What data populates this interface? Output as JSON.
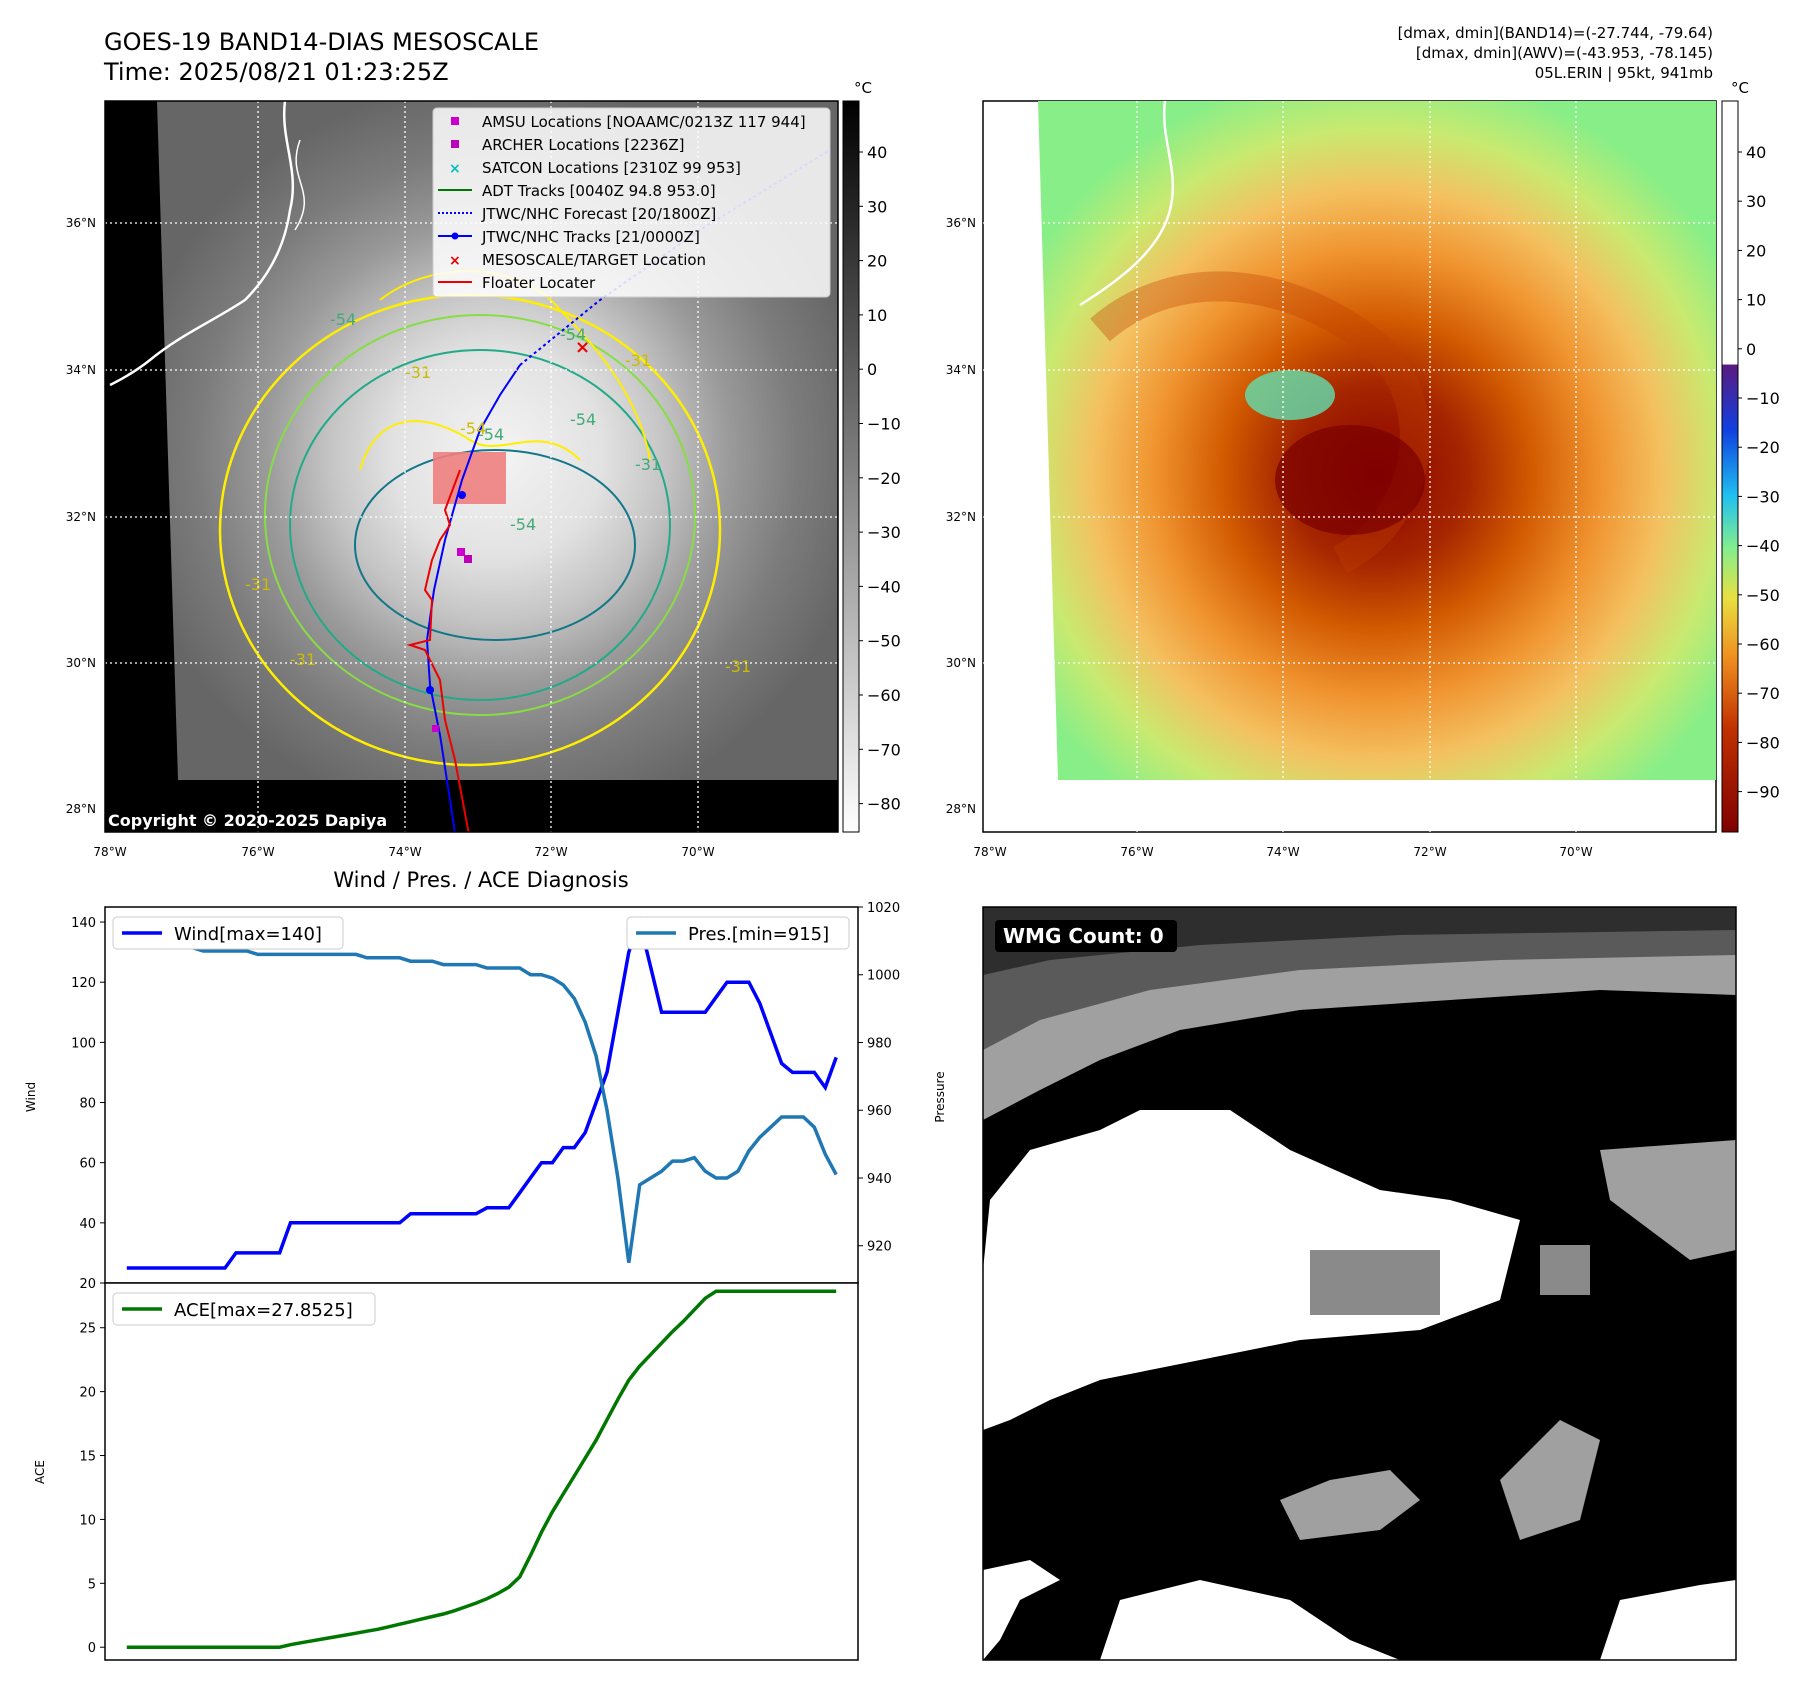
{
  "header": {
    "title_line1": "GOES-19 BAND14-DIAS MESOSCALE",
    "title_line2": "Time: 2025/08/21 01:23:25Z",
    "right_line1": "[dmax, dmin](BAND14)=(-27.744, -79.64)",
    "right_line2": "[dmax, dmin](AWV)=(-43.953, -78.145)",
    "right_line3": "05L.ERIN | 95kt, 941mb"
  },
  "map_axes": {
    "lat_labels": [
      "36°N",
      "34°N",
      "32°N",
      "30°N",
      "28°N"
    ],
    "lon_labels": [
      "78°W",
      "76°W",
      "74°W",
      "72°W",
      "70°W"
    ],
    "contour_labels": [
      "-54",
      "-31",
      "-54",
      "-31",
      "-54",
      "-31",
      "-54",
      "-54",
      "-31",
      "-31",
      "-31",
      "-54"
    ]
  },
  "ir_panel": {
    "colorbar_unit": "°C",
    "colorbar_ticks": [
      "40",
      "30",
      "20",
      "10",
      "0",
      "−10",
      "−20",
      "−30",
      "−40",
      "−50",
      "−60",
      "−70",
      "−80"
    ],
    "copyright": "Copyright © 2020-2025 Dapiya",
    "legend": [
      {
        "label": "AMSU Locations [NOAAMC/0213Z 117 944]",
        "marker": "square",
        "color": "#cc00cc"
      },
      {
        "label": "ARCHER Locations [2236Z]",
        "marker": "square",
        "color": "#bb00bb"
      },
      {
        "label": "SATCON Locations [2310Z 99 953]",
        "marker": "x",
        "color": "#00c0c0"
      },
      {
        "label": "ADT Tracks [0040Z 94.8 953.0]",
        "marker": "line",
        "color": "#007700"
      },
      {
        "label": "JTWC/NHC Forecast [20/1800Z]",
        "marker": "dotted",
        "color": "#0000ff"
      },
      {
        "label": "JTWC/NHC Tracks [21/0000Z]",
        "marker": "line-dot",
        "color": "#0000ff"
      },
      {
        "label": "MESOSCALE/TARGET Location",
        "marker": "x",
        "color": "#ee0000"
      },
      {
        "label": "Floater Locater",
        "marker": "line",
        "color": "#ee0000"
      }
    ]
  },
  "awv_panel": {
    "colorbar_unit": "°C",
    "colorbar_ticks": [
      "40",
      "30",
      "20",
      "10",
      "0",
      "−10",
      "−20",
      "−30",
      "−40",
      "−50",
      "−60",
      "−70",
      "−80",
      "−90"
    ]
  },
  "wmg_panel": {
    "badge": "WMG Count: 0"
  },
  "chart_data": [
    {
      "type": "line",
      "title": "Wind / Pres. / ACE Diagnosis",
      "x": [
        0,
        1,
        2,
        3,
        4,
        5,
        6,
        7,
        8,
        9,
        10,
        11,
        12,
        13,
        14,
        15,
        16,
        17,
        18,
        19,
        20,
        21,
        22,
        23,
        24,
        25,
        26,
        27,
        28,
        29,
        30,
        31,
        32,
        33,
        34,
        35,
        36,
        37,
        38,
        39,
        40,
        41,
        42,
        43,
        44,
        45,
        46,
        47,
        48,
        49,
        50,
        51,
        52,
        53,
        54,
        55,
        56,
        57,
        58,
        59,
        60,
        61,
        62,
        63,
        64,
        65
      ],
      "xlabel": "",
      "ylabel": "Wind",
      "ylim": [
        20,
        145
      ],
      "yticks": [
        "140",
        "120",
        "100",
        "80",
        "60",
        "40",
        "20"
      ],
      "y2label": "Pressure",
      "y2lim": [
        909,
        1020
      ],
      "y2ticks": [
        "1020",
        "1000",
        "980",
        "960",
        "940",
        "920"
      ],
      "series": [
        {
          "name": "Wind",
          "legend": "Wind[max=140]",
          "color": "#0000ff",
          "axis": "left",
          "values": [
            25,
            25,
            25,
            25,
            25,
            25,
            25,
            25,
            25,
            25,
            30,
            30,
            30,
            30,
            30,
            40,
            40,
            40,
            40,
            40,
            40,
            40,
            40,
            40,
            40,
            40,
            43,
            43,
            43,
            43,
            43,
            43,
            43,
            45,
            45,
            45,
            50,
            55,
            60,
            60,
            65,
            65,
            70,
            80,
            90,
            110,
            130,
            140,
            125,
            110,
            110,
            110,
            110,
            110,
            115,
            120,
            120,
            120,
            113,
            103,
            93,
            90,
            90,
            90,
            85,
            95
          ]
        },
        {
          "name": "Pressure",
          "legend": "Pres.[min=915]",
          "color": "#1f77b4",
          "axis": "right",
          "values": [
            1008,
            1008,
            1008,
            1008,
            1008,
            1008,
            1008,
            1007,
            1007,
            1007,
            1007,
            1007,
            1006,
            1006,
            1006,
            1006,
            1006,
            1006,
            1006,
            1006,
            1006,
            1006,
            1005,
            1005,
            1005,
            1005,
            1004,
            1004,
            1004,
            1003,
            1003,
            1003,
            1003,
            1002,
            1002,
            1002,
            1002,
            1000,
            1000,
            999,
            997,
            993,
            986,
            976,
            960,
            940,
            915,
            938,
            940,
            942,
            945,
            945,
            946,
            942,
            940,
            940,
            942,
            948,
            952,
            955,
            958,
            958,
            958,
            955,
            947,
            941
          ]
        }
      ]
    },
    {
      "type": "line",
      "title": "",
      "x": [
        0,
        1,
        2,
        3,
        4,
        5,
        6,
        7,
        8,
        9,
        10,
        11,
        12,
        13,
        14,
        15,
        16,
        17,
        18,
        19,
        20,
        21,
        22,
        23,
        24,
        25,
        26,
        27,
        28,
        29,
        30,
        31,
        32,
        33,
        34,
        35,
        36,
        37,
        38,
        39,
        40,
        41,
        42,
        43,
        44,
        45,
        46,
        47,
        48,
        49,
        50,
        51,
        52,
        53,
        54,
        55,
        56,
        57,
        58,
        59,
        60,
        61,
        62,
        63,
        64,
        65
      ],
      "xlabel": "",
      "ylabel": "ACE",
      "ylim": [
        -1,
        28.5
      ],
      "yticks": [
        "25",
        "20",
        "15",
        "10",
        "5",
        "0"
      ],
      "series": [
        {
          "name": "ACE",
          "legend": "ACE[max=27.8525]",
          "color": "#007700",
          "values": [
            0,
            0,
            0,
            0,
            0,
            0,
            0,
            0,
            0,
            0,
            0,
            0,
            0,
            0,
            0,
            0.2,
            0.35,
            0.5,
            0.65,
            0.8,
            0.95,
            1.1,
            1.25,
            1.4,
            1.6,
            1.8,
            2.0,
            2.2,
            2.4,
            2.6,
            2.85,
            3.15,
            3.45,
            3.8,
            4.2,
            4.7,
            5.5,
            7.2,
            9.0,
            10.6,
            12.0,
            13.4,
            14.8,
            16.2,
            17.8,
            19.4,
            20.9,
            22.0,
            22.9,
            23.8,
            24.7,
            25.5,
            26.4,
            27.3,
            27.85,
            27.85,
            27.85,
            27.85,
            27.85,
            27.85,
            27.85,
            27.85,
            27.85,
            27.85,
            27.85,
            27.85
          ]
        }
      ]
    }
  ]
}
